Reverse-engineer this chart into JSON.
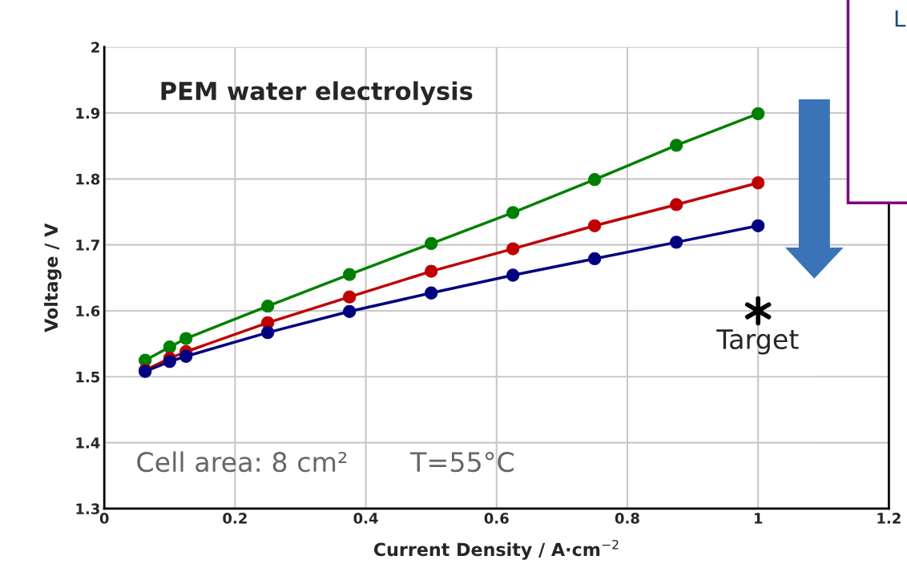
{
  "chart_data": {
    "type": "line",
    "title": "PEM water electrolysis",
    "xlabel": "Current Density / A·cm$^{−2}$",
    "ylabel": "Voltage / V",
    "x": [
      0.0625,
      0.1,
      0.125,
      0.25,
      0.375,
      0.5,
      0.625,
      0.75,
      0.875,
      1.0
    ],
    "series": [
      {
        "color": "#008000",
        "values": [
          1.525,
          1.545,
          1.558,
          1.607,
          1.655,
          1.702,
          1.749,
          1.799,
          1.851,
          1.899
        ]
      },
      {
        "color": "#c00000",
        "values": [
          1.51,
          1.528,
          1.538,
          1.582,
          1.621,
          1.66,
          1.694,
          1.729,
          1.761,
          1.794
        ]
      },
      {
        "color": "#000080",
        "values": [
          1.508,
          1.523,
          1.531,
          1.567,
          1.599,
          1.627,
          1.654,
          1.679,
          1.704,
          1.729
        ]
      },
      {
        "type": "scatter",
        "marker": "cross",
        "color": "#000000",
        "x": [
          1.0
        ],
        "values": [
          1.6
        ]
      }
    ],
    "marker": "circle",
    "line_style": "solid",
    "grid": true,
    "xlim": [
      0,
      1.2
    ],
    "xticks": [
      0,
      0.2,
      0.4,
      0.6,
      0.8,
      1,
      1.2
    ],
    "ylim": [
      1.3,
      2
    ],
    "yticks": [
      1.3,
      1.4,
      1.5,
      1.6,
      1.7,
      1.8,
      1.9,
      2
    ],
    "annotations": [
      "Target",
      "Cell area: 8 cm²",
      "T=55°C",
      "L"
    ]
  }
}
